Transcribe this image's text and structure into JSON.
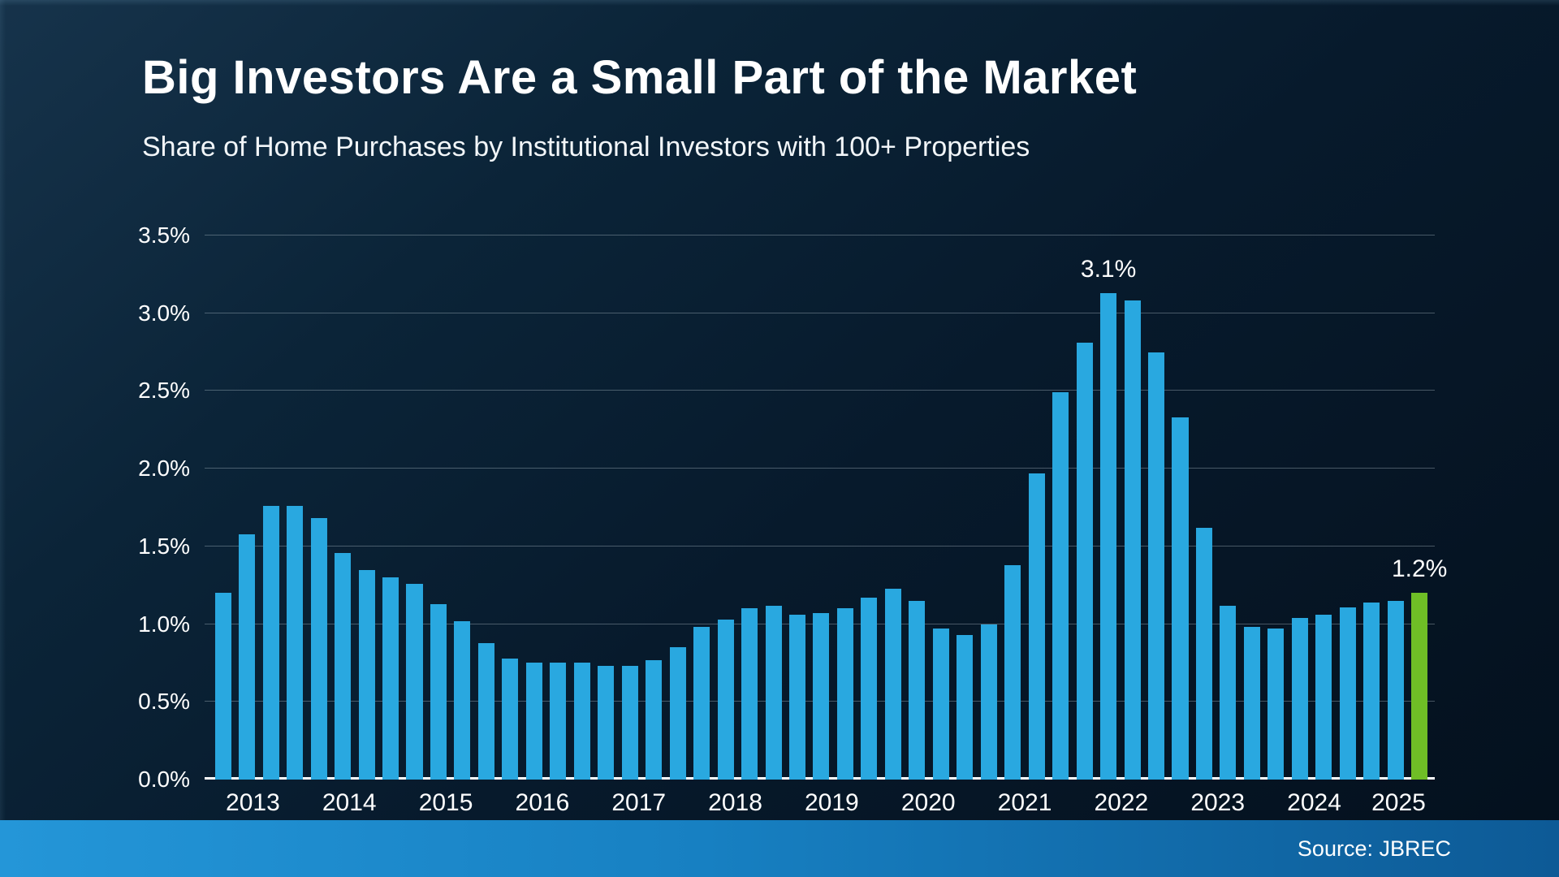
{
  "header": {
    "title": "Big Investors Are a Small Part of the Market",
    "subtitle": "Share of Home Purchases by Institutional Investors with 100+ Properties"
  },
  "footer": {
    "source": "Source: JBREC"
  },
  "chart_data": {
    "type": "bar",
    "title": "Big Investors Are a Small Part of the Market",
    "subtitle": "Share of Home Purchases by Institutional Investors with 100+ Properties",
    "xlabel": "",
    "ylabel": "",
    "ylim": [
      0,
      3.5
    ],
    "grid": true,
    "legend": "none",
    "bar_color": "#29a8e0",
    "highlight_color": "#6fbe26",
    "highlight_index": 50,
    "yticks": [
      {
        "value": 0.0,
        "label": "0.0%"
      },
      {
        "value": 0.5,
        "label": "0.5%"
      },
      {
        "value": 1.0,
        "label": "1.0%"
      },
      {
        "value": 1.5,
        "label": "1.5%"
      },
      {
        "value": 2.0,
        "label": "2.0%"
      },
      {
        "value": 2.5,
        "label": "2.5%"
      },
      {
        "value": 3.0,
        "label": "3.0%"
      },
      {
        "value": 3.5,
        "label": "3.5%"
      }
    ],
    "years": [
      {
        "label": "2013",
        "quarters": 4
      },
      {
        "label": "2014",
        "quarters": 4
      },
      {
        "label": "2015",
        "quarters": 4
      },
      {
        "label": "2016",
        "quarters": 4
      },
      {
        "label": "2017",
        "quarters": 4
      },
      {
        "label": "2018",
        "quarters": 4
      },
      {
        "label": "2019",
        "quarters": 4
      },
      {
        "label": "2020",
        "quarters": 4
      },
      {
        "label": "2021",
        "quarters": 4
      },
      {
        "label": "2022",
        "quarters": 4
      },
      {
        "label": "2023",
        "quarters": 4
      },
      {
        "label": "2024",
        "quarters": 4
      },
      {
        "label": "2025",
        "quarters": 3
      }
    ],
    "values": [
      1.2,
      1.58,
      1.76,
      1.76,
      1.68,
      1.46,
      1.35,
      1.3,
      1.26,
      1.13,
      1.02,
      0.88,
      0.78,
      0.75,
      0.75,
      0.75,
      0.73,
      0.73,
      0.77,
      0.85,
      0.98,
      1.03,
      1.1,
      1.12,
      1.06,
      1.07,
      1.1,
      1.17,
      1.23,
      1.15,
      0.97,
      0.93,
      1.0,
      1.38,
      1.97,
      2.49,
      2.81,
      3.13,
      3.08,
      2.75,
      2.33,
      1.62,
      1.12,
      0.98,
      0.97,
      1.04,
      1.06,
      1.11,
      1.14,
      1.15,
      1.2
    ],
    "annotations": [
      {
        "index": 37,
        "label": "3.1%"
      },
      {
        "index": 50,
        "label": "1.2%"
      }
    ]
  }
}
